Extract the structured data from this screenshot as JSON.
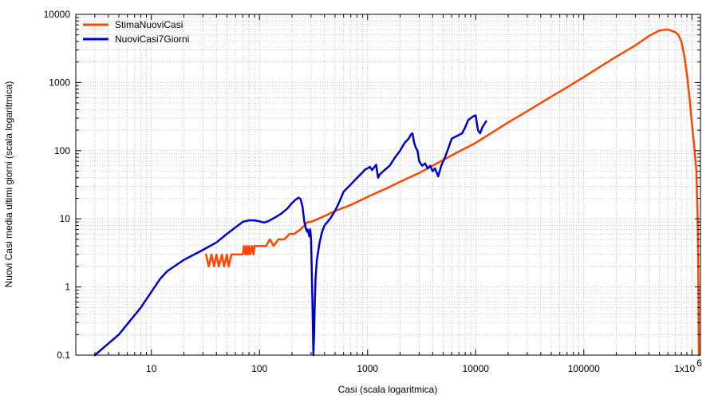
{
  "chart_data": {
    "type": "line",
    "title": "",
    "xlabel": "Casi (scala logaritmica)",
    "ylabel": "Nuovi Casi media ultimi giorni (scala logaritmica)",
    "xscale": "log",
    "yscale": "log",
    "xlim": [
      2,
      1200000
    ],
    "ylim": [
      0.1,
      10000
    ],
    "grid": true,
    "legend_position": "top-left",
    "x_ticks": [
      {
        "value": 10,
        "label": "10"
      },
      {
        "value": 100,
        "label": "100"
      },
      {
        "value": 1000,
        "label": "1000"
      },
      {
        "value": 10000,
        "label": "10000"
      },
      {
        "value": 100000,
        "label": "100000"
      }
    ],
    "x_last_tick": {
      "value": 1000000,
      "mantissa": "1x10",
      "exponent": "6"
    },
    "y_ticks": [
      {
        "value": 0.1,
        "label": "0.1"
      },
      {
        "value": 1,
        "label": "1"
      },
      {
        "value": 10,
        "label": "10"
      },
      {
        "value": 100,
        "label": "100"
      },
      {
        "value": 1000,
        "label": "1000"
      },
      {
        "value": 10000,
        "label": "10000"
      }
    ],
    "series": [
      {
        "name": "StimaNuoviCasi",
        "color": "#ff4500",
        "points": [
          [
            32,
            3
          ],
          [
            34,
            2
          ],
          [
            36,
            3
          ],
          [
            38,
            2
          ],
          [
            40,
            3
          ],
          [
            42,
            2
          ],
          [
            45,
            3
          ],
          [
            47,
            2
          ],
          [
            50,
            3
          ],
          [
            52,
            2
          ],
          [
            55,
            3
          ],
          [
            60,
            3
          ],
          [
            65,
            3
          ],
          [
            70,
            3
          ],
          [
            72,
            4
          ],
          [
            74,
            3
          ],
          [
            76,
            4
          ],
          [
            78,
            3
          ],
          [
            80,
            4
          ],
          [
            82,
            3
          ],
          [
            85,
            4
          ],
          [
            88,
            3
          ],
          [
            90,
            4
          ],
          [
            100,
            4
          ],
          [
            115,
            4
          ],
          [
            125,
            5
          ],
          [
            135,
            4
          ],
          [
            150,
            5
          ],
          [
            170,
            5
          ],
          [
            190,
            6
          ],
          [
            210,
            6
          ],
          [
            240,
            7
          ],
          [
            260,
            8
          ],
          [
            280,
            9
          ],
          [
            300,
            9
          ],
          [
            350,
            10
          ],
          [
            400,
            11
          ],
          [
            500,
            13
          ],
          [
            700,
            16
          ],
          [
            1000,
            21
          ],
          [
            1500,
            28
          ],
          [
            2000,
            35
          ],
          [
            3000,
            47
          ],
          [
            5000,
            73
          ],
          [
            7000,
            97
          ],
          [
            10000,
            130
          ],
          [
            20000,
            260
          ],
          [
            30000,
            380
          ],
          [
            50000,
            620
          ],
          [
            70000,
            850
          ],
          [
            100000,
            1200
          ],
          [
            150000,
            1800
          ],
          [
            200000,
            2400
          ],
          [
            300000,
            3500
          ],
          [
            400000,
            4800
          ],
          [
            500000,
            5800
          ],
          [
            600000,
            6000
          ],
          [
            700000,
            5500
          ],
          [
            750000,
            5000
          ],
          [
            800000,
            4000
          ],
          [
            850000,
            2500
          ],
          [
            900000,
            1300
          ],
          [
            950000,
            600
          ],
          [
            1000000,
            250
          ],
          [
            1050000,
            120
          ],
          [
            1100000,
            50
          ],
          [
            1130000,
            10
          ],
          [
            1150000,
            1
          ],
          [
            1160000,
            0.1
          ]
        ]
      },
      {
        "name": "NuoviCasi7Giorni",
        "color": "#0000cd",
        "points": [
          [
            3,
            0.1
          ],
          [
            5,
            0.2
          ],
          [
            8,
            0.5
          ],
          [
            12,
            1.3
          ],
          [
            14,
            1.7
          ],
          [
            20,
            2.5
          ],
          [
            30,
            3.5
          ],
          [
            40,
            4.5
          ],
          [
            50,
            6
          ],
          [
            60,
            7.5
          ],
          [
            70,
            9
          ],
          [
            80,
            9.5
          ],
          [
            90,
            9.5
          ],
          [
            100,
            9.2
          ],
          [
            110,
            8.8
          ],
          [
            120,
            9.2
          ],
          [
            140,
            10.5
          ],
          [
            160,
            12
          ],
          [
            180,
            14
          ],
          [
            200,
            17
          ],
          [
            215,
            19
          ],
          [
            230,
            20.5
          ],
          [
            240,
            19.5
          ],
          [
            250,
            15
          ],
          [
            260,
            9
          ],
          [
            270,
            7
          ],
          [
            275,
            6.5
          ],
          [
            280,
            7
          ],
          [
            285,
            6
          ],
          [
            290,
            5.5
          ],
          [
            295,
            7
          ],
          [
            300,
            5
          ],
          [
            305,
            1.5
          ],
          [
            310,
            0.5
          ],
          [
            315,
            0.1
          ],
          [
            320,
            0.2
          ],
          [
            325,
            0.6
          ],
          [
            330,
            1.3
          ],
          [
            340,
            2.5
          ],
          [
            360,
            4.5
          ],
          [
            380,
            6.5
          ],
          [
            400,
            8
          ],
          [
            450,
            10
          ],
          [
            500,
            13
          ],
          [
            550,
            18
          ],
          [
            600,
            25
          ],
          [
            700,
            32
          ],
          [
            800,
            40
          ],
          [
            900,
            48
          ],
          [
            950,
            53
          ],
          [
            1000,
            55
          ],
          [
            1050,
            58
          ],
          [
            1100,
            52
          ],
          [
            1200,
            62
          ],
          [
            1250,
            40
          ],
          [
            1300,
            45
          ],
          [
            1400,
            50
          ],
          [
            1600,
            60
          ],
          [
            1800,
            80
          ],
          [
            2000,
            100
          ],
          [
            2200,
            130
          ],
          [
            2400,
            150
          ],
          [
            2500,
            170
          ],
          [
            2600,
            180
          ],
          [
            2700,
            130
          ],
          [
            2800,
            110
          ],
          [
            2900,
            100
          ],
          [
            3000,
            70
          ],
          [
            3200,
            60
          ],
          [
            3400,
            65
          ],
          [
            3600,
            55
          ],
          [
            3800,
            60
          ],
          [
            4000,
            50
          ],
          [
            4200,
            55
          ],
          [
            4500,
            42
          ],
          [
            4800,
            60
          ],
          [
            5200,
            80
          ],
          [
            5600,
            110
          ],
          [
            6000,
            150
          ],
          [
            6500,
            160
          ],
          [
            7000,
            170
          ],
          [
            7500,
            180
          ],
          [
            8000,
            220
          ],
          [
            8500,
            280
          ],
          [
            9000,
            300
          ],
          [
            9500,
            320
          ],
          [
            10000,
            330
          ],
          [
            10500,
            200
          ],
          [
            11000,
            180
          ],
          [
            11500,
            220
          ],
          [
            12500,
            270
          ]
        ]
      }
    ]
  }
}
